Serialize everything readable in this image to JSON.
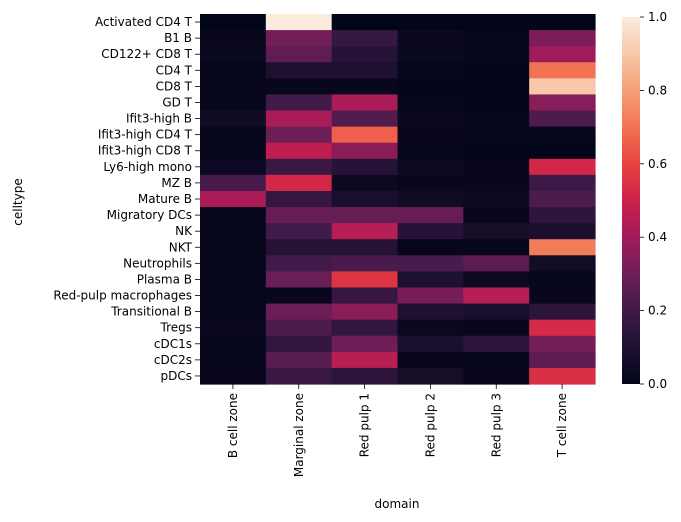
{
  "chart_data": {
    "type": "heatmap",
    "xlabel": "domain",
    "ylabel": "celltype",
    "x_categories": [
      "B cell zone",
      "Marginal zone",
      "Red pulp 1",
      "Red pulp 2",
      "Red pulp 3",
      "T cell zone"
    ],
    "y_categories": [
      "Activated CD4 T",
      "B1 B",
      "CD122+ CD8 T",
      "CD4 T",
      "CD8 T",
      "GD T",
      "Ifit3-high B",
      "Ifit3-high CD4 T",
      "Ifit3-high CD8 T",
      "Ly6-high mono",
      "MZ B",
      "Mature B",
      "Migratory DCs",
      "NK",
      "NKT",
      "Neutrophils",
      "Plasma B",
      "Red-pulp macrophages",
      "Transitional B",
      "Tregs",
      "cDC1s",
      "cDC2s",
      "pDCs"
    ],
    "values": [
      [
        0.0,
        1.0,
        0.0,
        0.0,
        0.0,
        0.0
      ],
      [
        0.02,
        0.31,
        0.17,
        0.03,
        0.01,
        0.33
      ],
      [
        0.03,
        0.27,
        0.13,
        0.03,
        0.01,
        0.4
      ],
      [
        0.01,
        0.1,
        0.1,
        0.01,
        0.0,
        0.7
      ],
      [
        0.01,
        0.02,
        0.02,
        0.0,
        0.0,
        0.9
      ],
      [
        0.01,
        0.2,
        0.42,
        0.01,
        0.0,
        0.35
      ],
      [
        0.05,
        0.42,
        0.24,
        0.03,
        0.01,
        0.23
      ],
      [
        0.01,
        0.3,
        0.66,
        0.02,
        0.01,
        0.01
      ],
      [
        0.01,
        0.47,
        0.36,
        0.01,
        0.0,
        0.0
      ],
      [
        0.04,
        0.18,
        0.13,
        0.04,
        0.02,
        0.52
      ],
      [
        0.22,
        0.52,
        0.04,
        0.02,
        0.02,
        0.19
      ],
      [
        0.42,
        0.17,
        0.08,
        0.05,
        0.04,
        0.23
      ],
      [
        0.01,
        0.28,
        0.28,
        0.28,
        0.02,
        0.15
      ],
      [
        0.01,
        0.2,
        0.45,
        0.13,
        0.07,
        0.09
      ],
      [
        0.01,
        0.12,
        0.12,
        0.01,
        0.01,
        0.72
      ],
      [
        0.01,
        0.2,
        0.22,
        0.22,
        0.26,
        0.06
      ],
      [
        0.01,
        0.29,
        0.56,
        0.1,
        0.04,
        0.01
      ],
      [
        0.01,
        0.02,
        0.17,
        0.32,
        0.45,
        0.02
      ],
      [
        0.01,
        0.29,
        0.36,
        0.1,
        0.08,
        0.14
      ],
      [
        0.03,
        0.23,
        0.16,
        0.03,
        0.02,
        0.53
      ],
      [
        0.01,
        0.16,
        0.3,
        0.09,
        0.15,
        0.31
      ],
      [
        0.01,
        0.25,
        0.45,
        0.02,
        0.01,
        0.26
      ],
      [
        0.02,
        0.18,
        0.14,
        0.07,
        0.02,
        0.54
      ]
    ],
    "colorbar": {
      "range": [
        0.0,
        1.0
      ],
      "ticks": [
        "0.0",
        "0.2",
        "0.4",
        "0.6",
        "0.8",
        "1.0"
      ],
      "colormap": "rocket"
    },
    "grid": false
  }
}
